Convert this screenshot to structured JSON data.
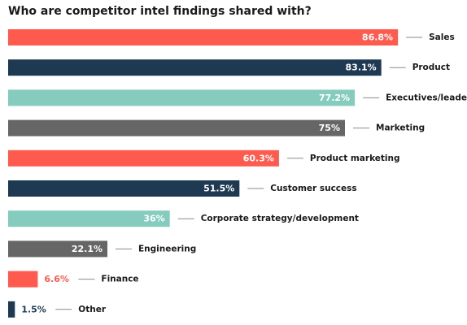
{
  "chart_data": {
    "type": "bar",
    "orientation": "horizontal",
    "title": "Who are competitor intel findings shared with?",
    "categories": [
      "Sales",
      "Product",
      "Executives/leadership",
      "Marketing",
      "Product marketing",
      "Customer success",
      "Corporate strategy/development",
      "Engineering",
      "Finance",
      "Other"
    ],
    "values": [
      86.8,
      83.1,
      77.2,
      75,
      60.3,
      51.5,
      36,
      22.1,
      6.6,
      1.5
    ],
    "value_labels": [
      "86.8%",
      "83.1%",
      "77.2%",
      "75%",
      "60.3%",
      "51.5%",
      "36%",
      "22.1%",
      "6.6%",
      "1.5%"
    ],
    "xlim": [
      0,
      100
    ],
    "grid": false,
    "legend": "none"
  },
  "colors": {
    "coral": "#FF5A4E",
    "navy": "#1E3A52",
    "teal": "#85CCBE",
    "gray": "#666666",
    "bar_color_sequence": [
      "coral",
      "navy",
      "teal",
      "gray",
      "coral",
      "navy",
      "teal",
      "gray",
      "coral",
      "navy"
    ]
  }
}
